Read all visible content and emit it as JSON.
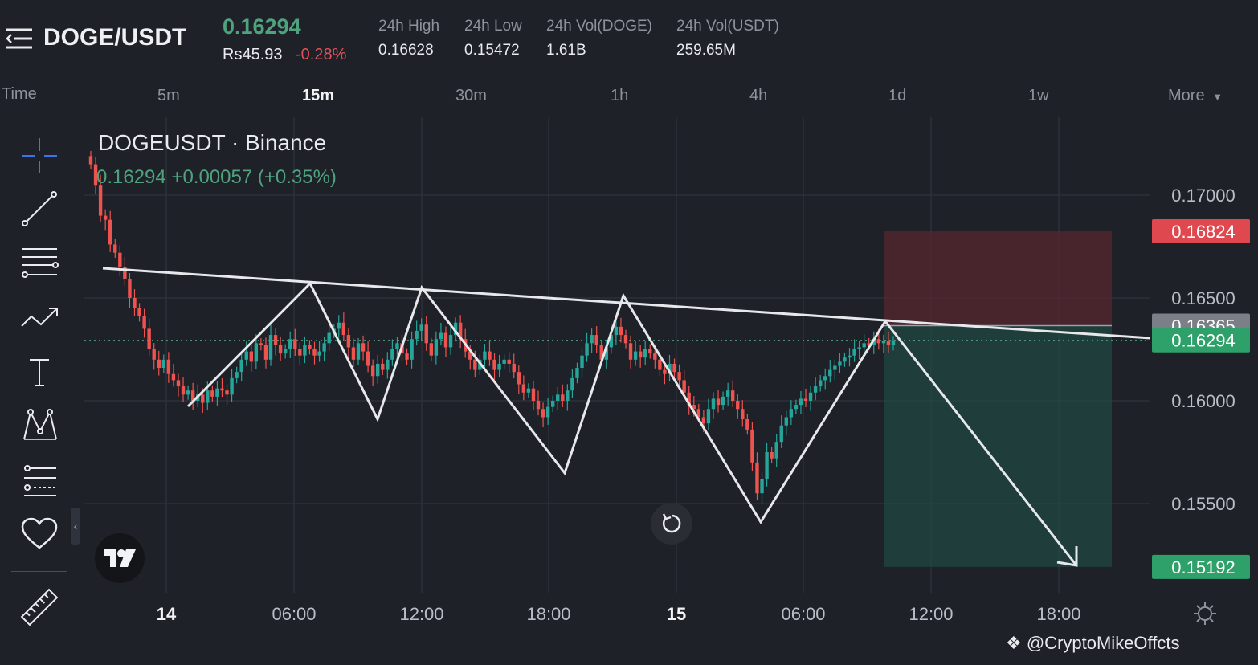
{
  "header": {
    "pair": "DOGE/USDT",
    "last_price": "0.16294",
    "fiat_price": "Rs45.93",
    "change_pct": "-0.28%",
    "stats": [
      {
        "label": "24h High",
        "value": "0.16628"
      },
      {
        "label": "24h Low",
        "value": "0.15472"
      },
      {
        "label": "24h Vol(DOGE)",
        "value": "1.61B"
      },
      {
        "label": "24h Vol(USDT)",
        "value": "259.65M"
      }
    ]
  },
  "timeframes": {
    "label": "Time",
    "items": [
      "5m",
      "15m",
      "30m",
      "1h",
      "4h",
      "1d",
      "1w"
    ],
    "active": "15m",
    "more": "More"
  },
  "legend": {
    "symbol": "DOGEUSDT · Binance",
    "change": "0.16294  +0.00057 (+0.35%)"
  },
  "watermark": "@CryptoMikeOffcts",
  "tools": [
    "crosshair-icon",
    "trendline-icon",
    "horizontal-lines-icon",
    "pattern-icon",
    "text-icon",
    "xabcd-pattern-icon",
    "fib-icon",
    "heart-icon",
    "ruler-icon"
  ],
  "colors": {
    "up": "#26a69a",
    "down": "#ef5350",
    "background": "#1e2127",
    "accent_green": "#4fa27e",
    "accent_red": "#e0505a"
  },
  "chart_data": {
    "type": "candlestick",
    "symbol": "DOGEUSDT",
    "exchange": "Binance",
    "interval": "15m",
    "ylim": [
      0.1505,
      0.1722
    ],
    "y_ticks": [
      "0.17000",
      "0.16500",
      "0.16000",
      "0.15500"
    ],
    "x_ticks": [
      "14",
      "06:00",
      "12:00",
      "18:00",
      "15",
      "06:00",
      "12:00",
      "18:00"
    ],
    "price_labels": [
      {
        "value": "0.16824",
        "kind": "stop-loss"
      },
      {
        "value": "0.16365",
        "kind": "entry"
      },
      {
        "value": "0.16294",
        "kind": "last"
      },
      {
        "value": "0.15192",
        "kind": "target"
      }
    ],
    "closes": [
      0.1715,
      0.1705,
      0.169,
      0.1688,
      0.1676,
      0.1672,
      0.1665,
      0.1659,
      0.165,
      0.1645,
      0.1641,
      0.1635,
      0.1625,
      0.162,
      0.1616,
      0.162,
      0.1613,
      0.161,
      0.1607,
      0.1603,
      0.1605,
      0.16,
      0.1603,
      0.1599,
      0.1605,
      0.1602,
      0.1606,
      0.1605,
      0.1603,
      0.1611,
      0.1614,
      0.162,
      0.1624,
      0.1619,
      0.1628,
      0.1627,
      0.162,
      0.1632,
      0.1627,
      0.1623,
      0.1625,
      0.163,
      0.1625,
      0.1622,
      0.1627,
      0.1625,
      0.1622,
      0.1624,
      0.1628,
      0.1633,
      0.1635,
      0.1638,
      0.1632,
      0.1626,
      0.162,
      0.1628,
      0.1624,
      0.1617,
      0.1612,
      0.1618,
      0.1615,
      0.162,
      0.1625,
      0.1628,
      0.1623,
      0.162,
      0.163,
      0.1634,
      0.1637,
      0.1628,
      0.1622,
      0.163,
      0.1633,
      0.1626,
      0.1632,
      0.1638,
      0.163,
      0.1624,
      0.162,
      0.1615,
      0.162,
      0.1624,
      0.162,
      0.1615,
      0.1618,
      0.162,
      0.1618,
      0.1614,
      0.1608,
      0.1604,
      0.1606,
      0.16,
      0.1596,
      0.1592,
      0.1597,
      0.16,
      0.1603,
      0.16,
      0.1605,
      0.1611,
      0.1616,
      0.1622,
      0.1628,
      0.1632,
      0.1627,
      0.162,
      0.1626,
      0.1632,
      0.1636,
      0.1632,
      0.1628,
      0.162,
      0.1624,
      0.1621,
      0.1625,
      0.1623,
      0.162,
      0.1615,
      0.1613,
      0.1618,
      0.1614,
      0.161,
      0.1604,
      0.1598,
      0.1596,
      0.1592,
      0.1589,
      0.1596,
      0.1601,
      0.1598,
      0.1602,
      0.1605,
      0.16,
      0.1596,
      0.1591,
      0.1586,
      0.157,
      0.1555,
      0.1562,
      0.1575,
      0.1572,
      0.158,
      0.1588,
      0.1592,
      0.1596,
      0.1598,
      0.1601,
      0.16,
      0.1604,
      0.1607,
      0.161,
      0.1612,
      0.1615,
      0.1617,
      0.1619,
      0.1621,
      0.1622,
      0.1625,
      0.1626,
      0.1628,
      0.1627,
      0.163,
      0.1628,
      0.1629,
      0.1627,
      0.1629
    ],
    "annotations": {
      "resistance_line": "descending trendline touching swing highs",
      "zigzag_pattern": "repeated touches of resistance followed by drops",
      "forecast": "short position projected down to 0.15192"
    }
  }
}
